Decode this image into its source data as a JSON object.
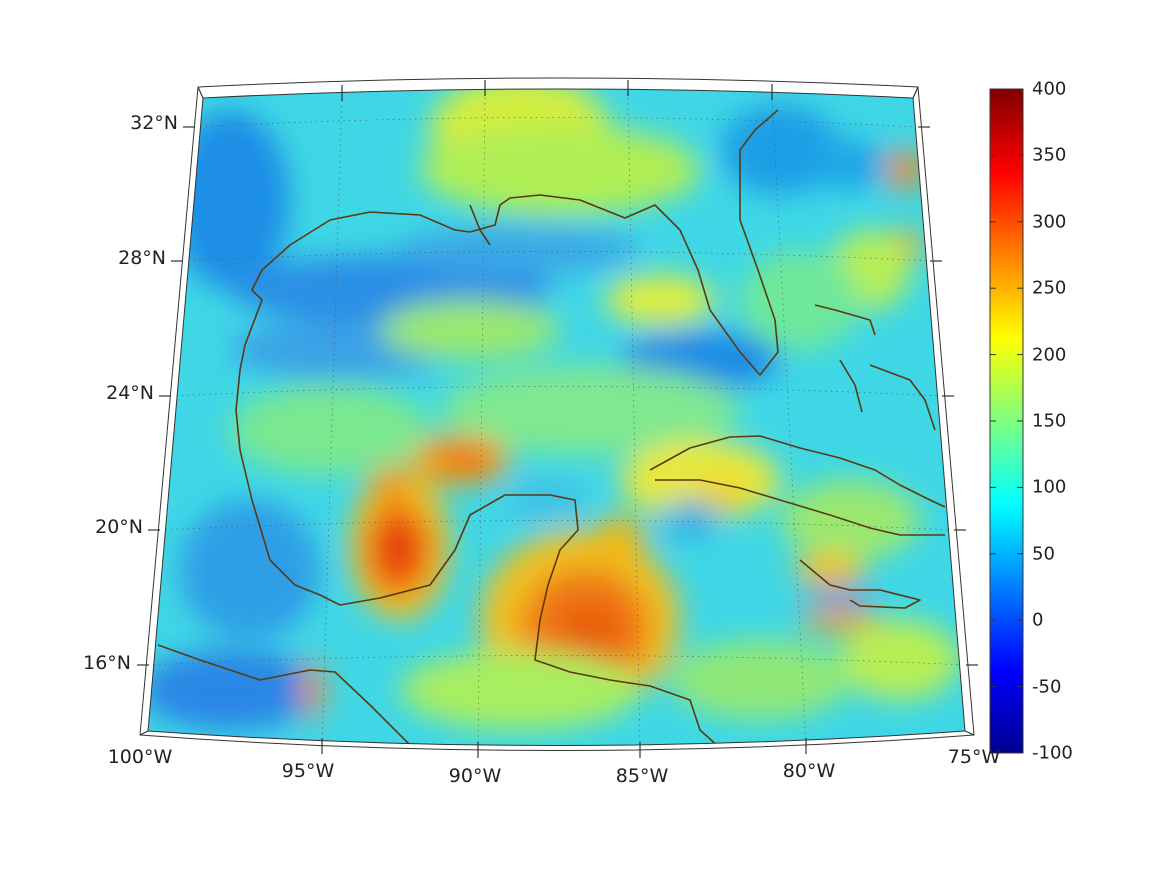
{
  "map": {
    "lat_labels": [
      "32°N",
      "28°N",
      "24°N",
      "20°N",
      "16°N"
    ],
    "lon_labels": [
      "100°W",
      "95°W",
      "90°W",
      "85°W",
      "80°W",
      "75°W"
    ],
    "extent": {
      "lon_min": -100,
      "lon_max": -75,
      "lat_min": 14,
      "lat_max": 33
    },
    "graticule": {
      "lon_step": 5,
      "lat_step": 4,
      "style": "dotted"
    }
  },
  "colorbar": {
    "ticks": [
      "400",
      "350",
      "300",
      "250",
      "200",
      "150",
      "100",
      "50",
      "0",
      "-50",
      "-100"
    ],
    "min": -100,
    "max": 400,
    "colormap": "jet"
  },
  "colors": {
    "coastline": "#5a3a12",
    "frame": "#333333"
  }
}
